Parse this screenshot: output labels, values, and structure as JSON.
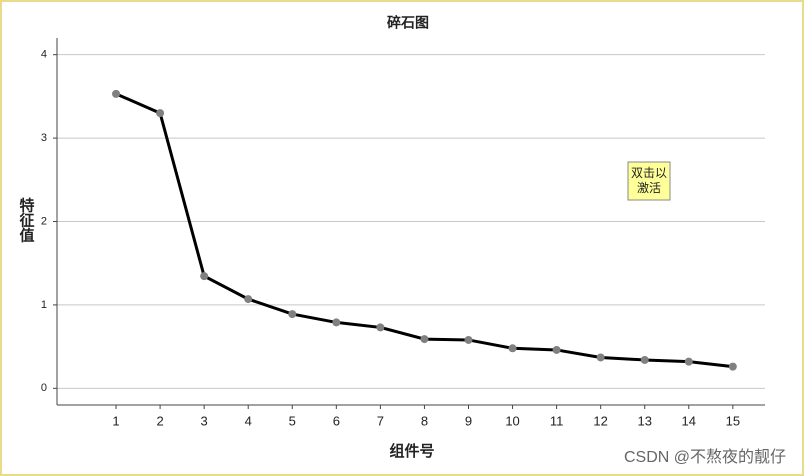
{
  "chart_data": {
    "type": "line",
    "title": "碎石图",
    "x_label": "组件号",
    "y_label": "特征值",
    "x": [
      1,
      2,
      3,
      4,
      5,
      6,
      7,
      8,
      9,
      10,
      11,
      12,
      13,
      14,
      15
    ],
    "series": [
      {
        "name": "特征值",
        "color": "#000000",
        "marker_color": "#808080",
        "values": [
          3.53,
          3.3,
          1.345,
          1.07,
          0.89,
          0.79,
          0.73,
          0.59,
          0.58,
          0.48,
          0.46,
          0.37,
          0.34,
          0.32,
          0.26
        ]
      }
    ],
    "xlim": [
      -0.34,
      15.73
    ],
    "xticks": [
      1,
      2,
      3,
      4,
      5,
      6,
      7,
      8,
      9,
      10,
      11,
      12,
      13,
      14,
      15
    ],
    "ylim": [
      -0.2,
      4.2
    ],
    "yticks": [
      0,
      1,
      2,
      3,
      4
    ],
    "grid": true,
    "annotation": [
      "双击以",
      "激活"
    ],
    "watermark": "CSDN @不熬夜的靓仔"
  }
}
